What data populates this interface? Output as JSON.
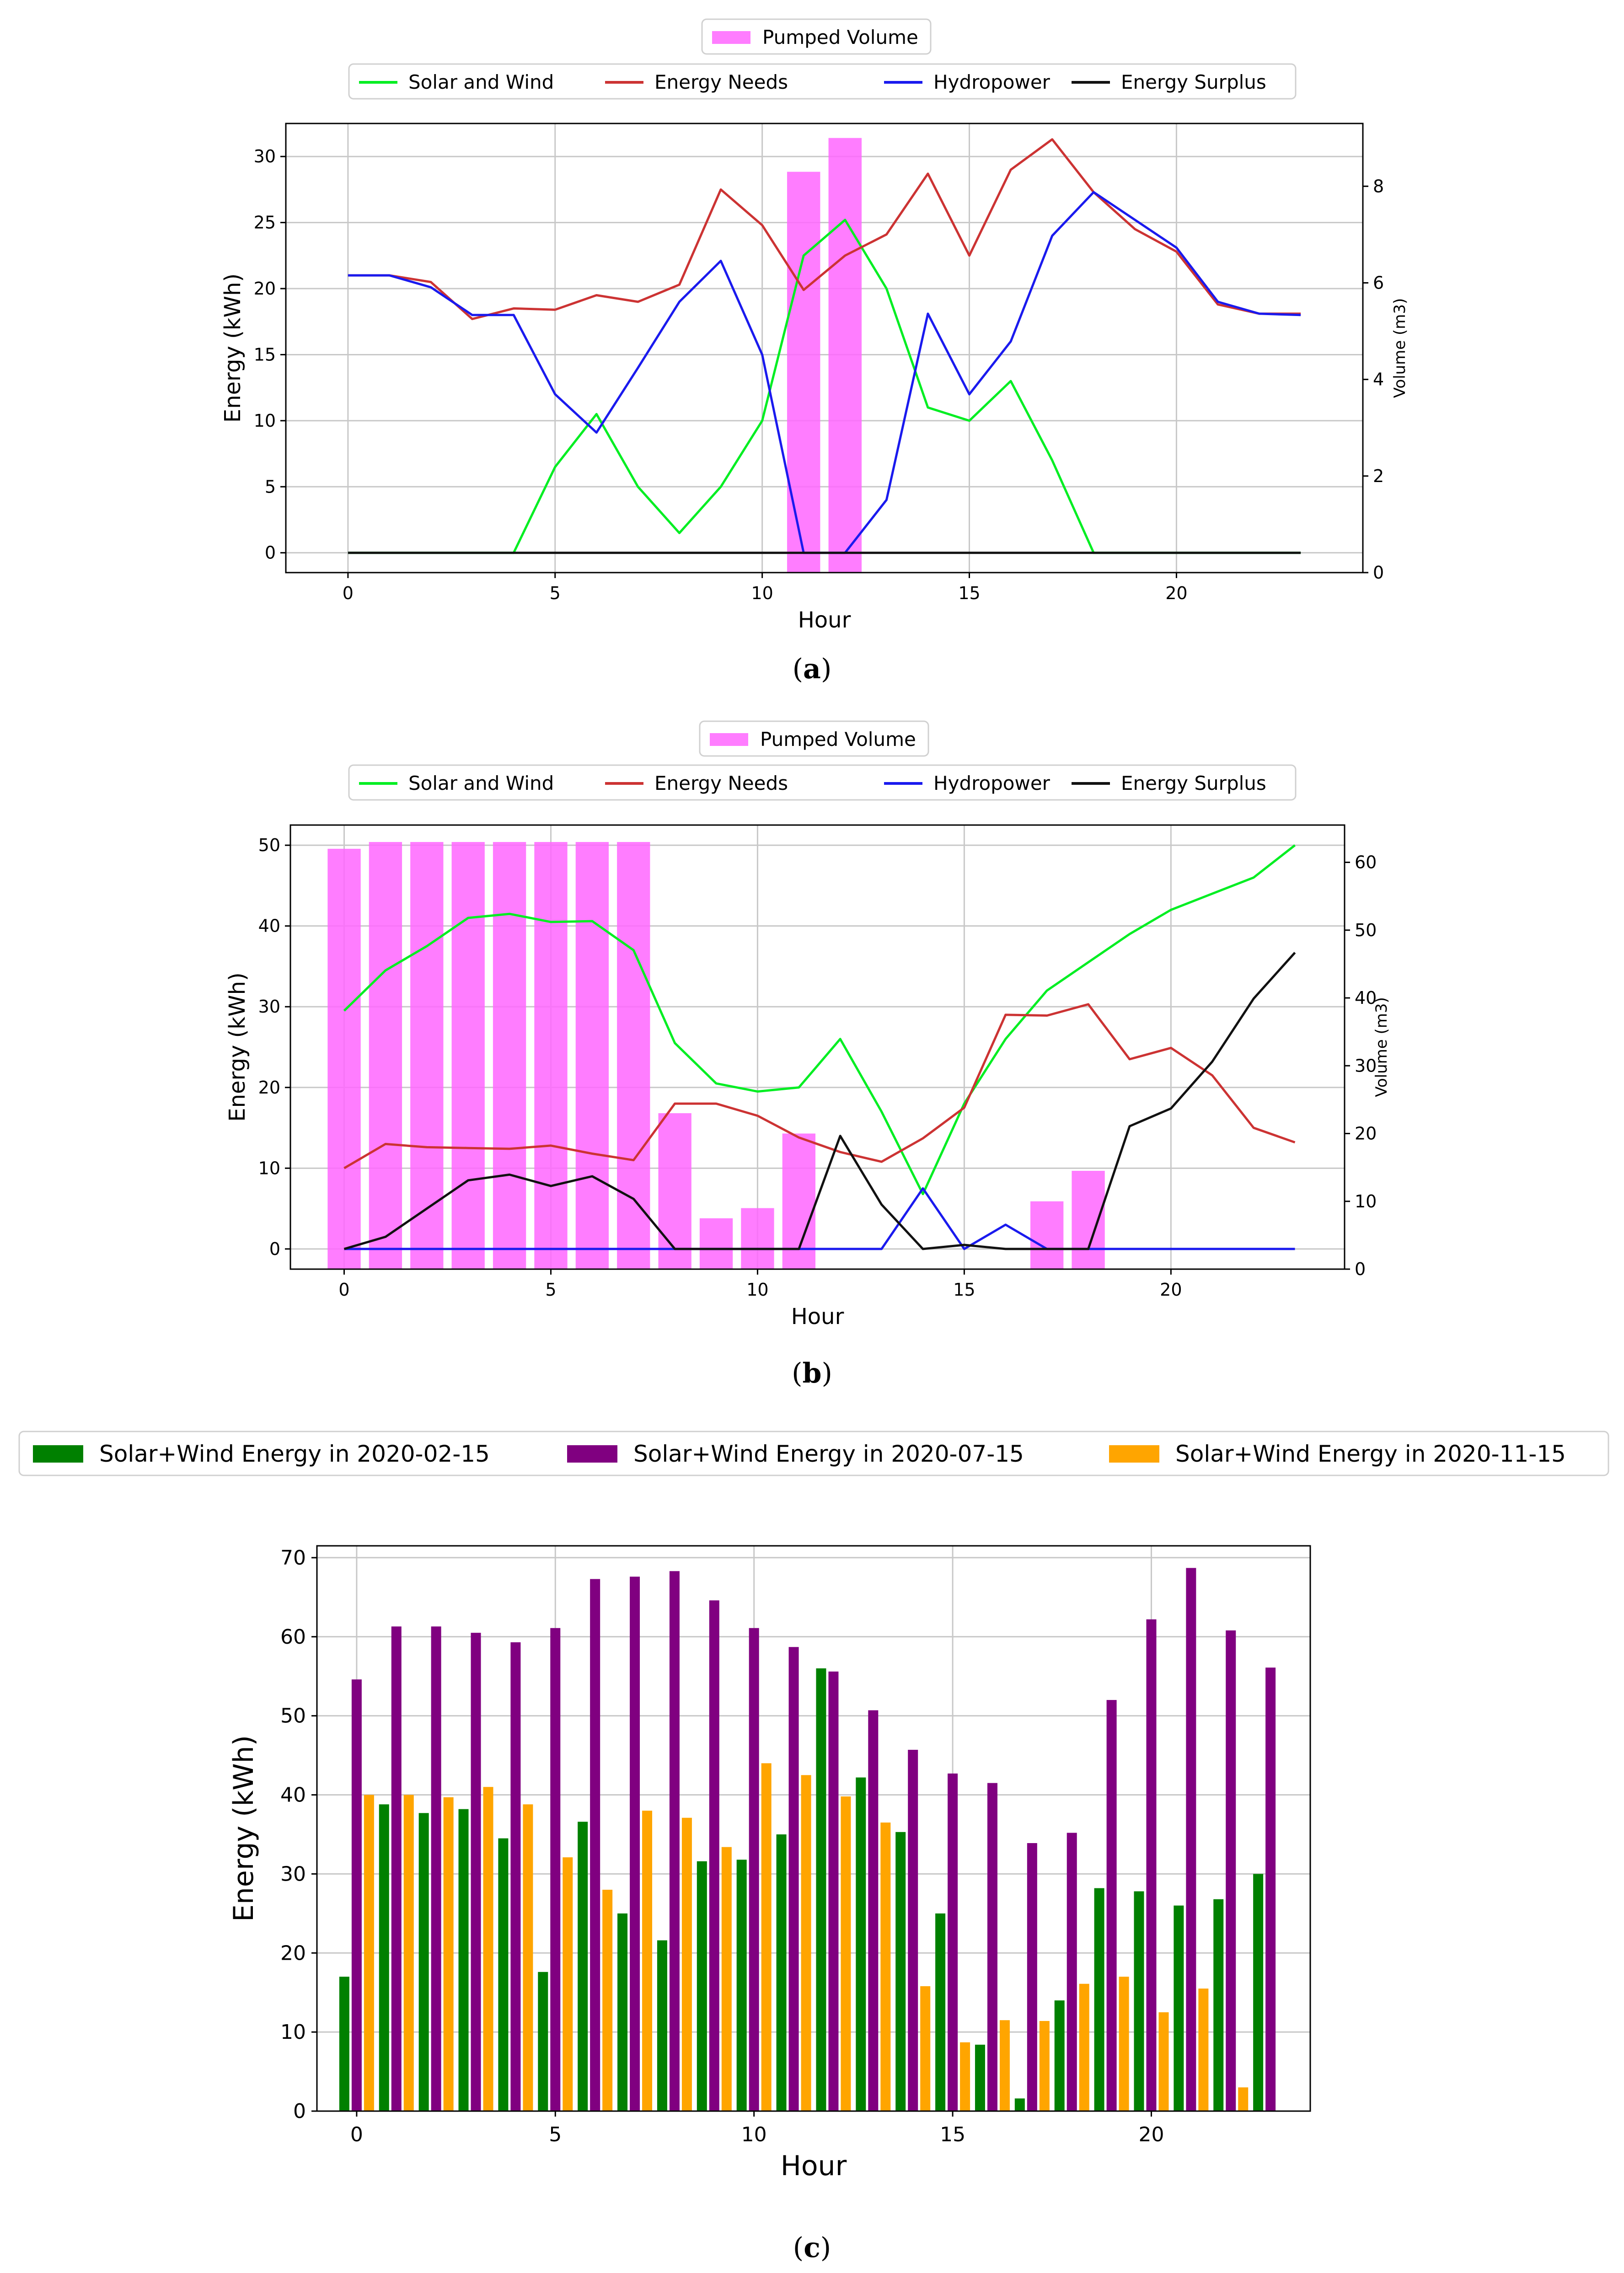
{
  "captions": {
    "a": "a",
    "b": "b",
    "c": "c"
  },
  "chart_data": [
    {
      "id": "a",
      "type": "line",
      "xlabel": "Hour",
      "ylabel": "Energy (kWh)",
      "y2label": "Volume (m3)",
      "ylim": [
        -1.5,
        32.5
      ],
      "y2lim": [
        0,
        9.3
      ],
      "xlim": [
        -1.5,
        24.5
      ],
      "xticks": [
        0,
        5,
        10,
        15,
        20
      ],
      "yticks": [
        0,
        5,
        10,
        15,
        20,
        25,
        30
      ],
      "y2ticks": [
        0,
        2,
        4,
        6,
        8
      ],
      "legend_top": "Pumped Volume",
      "x": [
        0,
        1,
        2,
        3,
        4,
        5,
        6,
        7,
        8,
        9,
        10,
        11,
        12,
        13,
        14,
        15,
        16,
        17,
        18,
        19,
        20,
        21,
        22,
        23
      ],
      "series": [
        {
          "name": "Solar and Wind",
          "color": "#00ee22",
          "values": [
            0,
            0,
            0,
            0,
            0,
            6.5,
            10.5,
            5,
            1.5,
            5,
            10,
            22.5,
            25.2,
            20,
            11,
            10,
            13,
            7,
            0,
            0,
            0,
            0,
            0,
            0
          ]
        },
        {
          "name": "Energy Needs",
          "color": "#cc3333",
          "values": [
            21,
            21,
            20.5,
            17.7,
            18.5,
            18.4,
            19.5,
            19,
            20.3,
            27.5,
            24.8,
            19.9,
            22.5,
            24.1,
            28.7,
            22.5,
            29,
            31.3,
            27.3,
            24.5,
            22.8,
            18.8,
            18.1,
            18.1
          ]
        },
        {
          "name": "Hydropower",
          "color": "#1a1aee",
          "values": [
            21,
            21,
            20.1,
            18,
            18,
            12,
            9.1,
            14,
            19,
            22.1,
            15,
            0,
            0,
            4,
            18.1,
            12,
            16,
            24,
            27.3,
            25.2,
            23.1,
            19,
            18.1,
            18
          ]
        },
        {
          "name": "Energy Surplus",
          "color": "#111111",
          "values": [
            0,
            0,
            0,
            0,
            0,
            0,
            0,
            0,
            0,
            0,
            0,
            0,
            0,
            0,
            0,
            0,
            0,
            0,
            0,
            0,
            0,
            0,
            0,
            0
          ]
        }
      ],
      "bars": {
        "name": "Pumped Volume",
        "color": "#ff66ff",
        "values": [
          0,
          0,
          0,
          0,
          0,
          0,
          0,
          0,
          0,
          0,
          0,
          8.3,
          9.0,
          0,
          0,
          0,
          0,
          0,
          0,
          0,
          0,
          0,
          0,
          0
        ]
      }
    },
    {
      "id": "b",
      "type": "line",
      "xlabel": "Hour",
      "ylabel": "Energy (kWh)",
      "y2label": "Volume (m3)",
      "ylim": [
        -2.5,
        52.5
      ],
      "y2lim": [
        0,
        65.5
      ],
      "xlim": [
        -1.3,
        24.2
      ],
      "xticks": [
        0,
        5,
        10,
        15,
        20
      ],
      "yticks": [
        0,
        10,
        20,
        30,
        40,
        50
      ],
      "y2ticks": [
        0,
        10,
        20,
        30,
        40,
        50,
        60
      ],
      "legend_top": "Pumped Volume",
      "x": [
        0,
        1,
        2,
        3,
        4,
        5,
        6,
        7,
        8,
        9,
        10,
        11,
        12,
        13,
        14,
        15,
        16,
        17,
        18,
        19,
        20,
        21,
        22,
        23
      ],
      "series": [
        {
          "name": "Solar and Wind",
          "color": "#00ee22",
          "values": [
            29.5,
            34.5,
            37.5,
            41,
            41.5,
            40.5,
            40.6,
            37,
            25.5,
            20.5,
            19.5,
            20,
            26,
            17,
            6.8,
            18,
            26,
            32,
            35.5,
            39,
            42,
            44,
            46,
            50
          ]
        },
        {
          "name": "Energy Needs",
          "color": "#cc3333",
          "values": [
            10,
            13,
            12.6,
            12.5,
            12.4,
            12.8,
            11.8,
            11,
            18,
            18,
            16.5,
            13.8,
            12,
            10.8,
            13.7,
            17.5,
            29,
            28.9,
            30.3,
            23.5,
            24.9,
            21.5,
            15,
            13.2
          ]
        },
        {
          "name": "Hydropower",
          "color": "#1a1aee",
          "values": [
            0,
            0,
            0,
            0,
            0,
            0,
            0,
            0,
            0,
            0,
            0,
            0,
            0,
            0,
            7.5,
            0,
            3,
            0,
            0,
            0,
            0,
            0,
            0,
            0
          ]
        },
        {
          "name": "Energy Surplus",
          "color": "#111111",
          "values": [
            0,
            1.5,
            5,
            8.5,
            9.2,
            7.8,
            9,
            6.2,
            0,
            0,
            0,
            0,
            14,
            5.5,
            0,
            0.5,
            0,
            0,
            0,
            15.2,
            17.4,
            23.2,
            31,
            36.7
          ]
        }
      ],
      "bars": {
        "name": "Pumped Volume",
        "color": "#ff66ff",
        "values": [
          62,
          63,
          63,
          63,
          63,
          63,
          63,
          63,
          23,
          7.5,
          9,
          20,
          0,
          0,
          0,
          0,
          0,
          10,
          14.5,
          0,
          0,
          0,
          0,
          0
        ]
      }
    },
    {
      "id": "c",
      "type": "bar",
      "xlabel": "Hour",
      "ylabel": "Energy (kWh)",
      "ylim": [
        0,
        71.5
      ],
      "xlim": [
        -1,
        24
      ],
      "xticks": [
        0,
        5,
        10,
        15,
        20
      ],
      "yticks": [
        0,
        10,
        20,
        30,
        40,
        50,
        60,
        70
      ],
      "categories": [
        0,
        1,
        2,
        3,
        4,
        5,
        6,
        7,
        8,
        9,
        10,
        11,
        12,
        13,
        14,
        15,
        16,
        17,
        18,
        19,
        20,
        21,
        22,
        23
      ],
      "series": [
        {
          "name": "Solar+Wind Energy in 2020-02-15",
          "color": "#008000",
          "values": [
            17,
            38.8,
            37.7,
            38.2,
            34.5,
            17.6,
            36.6,
            25,
            21.6,
            31.6,
            31.8,
            35,
            56,
            42.2,
            35.3,
            25,
            8.4,
            1.6,
            14,
            28.2,
            27.8,
            26,
            26.8,
            30
          ]
        },
        {
          "name": "Solar+Wind Energy in 2020-07-15",
          "color": "#800080",
          "values": [
            54.6,
            61.3,
            61.3,
            60.5,
            59.3,
            61.1,
            67.3,
            67.6,
            68.3,
            64.6,
            61.1,
            58.7,
            55.6,
            50.7,
            45.7,
            42.7,
            41.5,
            33.9,
            35.2,
            52,
            62.2,
            68.7,
            60.8,
            56.1
          ]
        },
        {
          "name": "Solar+Wind Energy in 2020-11-15",
          "color": "#ffa500",
          "values": [
            40,
            40,
            39.7,
            41,
            38.8,
            32.1,
            28,
            38,
            37.1,
            33.4,
            44,
            42.5,
            39.8,
            36.5,
            15.8,
            8.7,
            11.5,
            11.4,
            16.1,
            17,
            12.5,
            15.5,
            3,
            0
          ]
        }
      ]
    }
  ]
}
